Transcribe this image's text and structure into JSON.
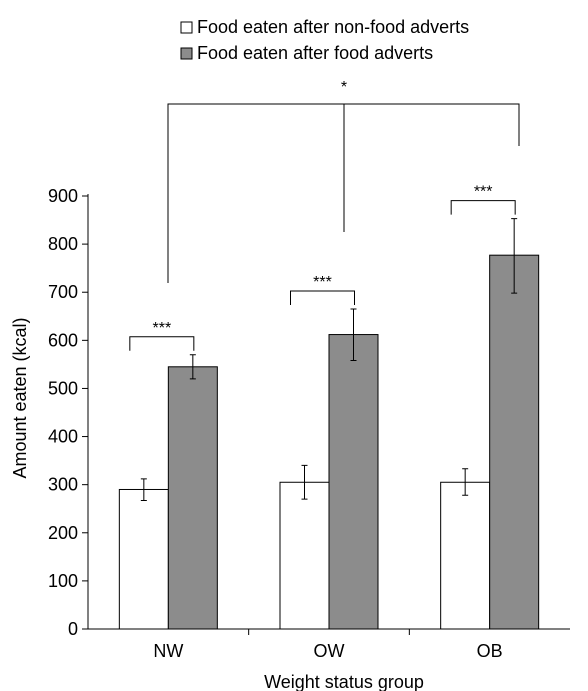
{
  "chart_data": {
    "type": "bar",
    "title": "",
    "xlabel": "Weight status group",
    "ylabel": "Amount eaten (kcal)",
    "ylim": [
      0,
      900
    ],
    "yticks": [
      0,
      100,
      200,
      300,
      400,
      500,
      600,
      700,
      800,
      900
    ],
    "categories": [
      "NW",
      "OW",
      "OB"
    ],
    "series": [
      {
        "name": "Food eaten after non-food adverts",
        "color": "#ffffff",
        "values": [
          290,
          305,
          305
        ],
        "error_low": [
          267,
          270,
          278
        ],
        "error_high": [
          312,
          340,
          333
        ]
      },
      {
        "name": "Food eaten after food adverts",
        "color": "#8c8c8c",
        "values": [
          545,
          612,
          777
        ],
        "error_low": [
          520,
          558,
          698
        ],
        "error_high": [
          570,
          665,
          853
        ]
      }
    ],
    "legend_position": "top",
    "grid": false,
    "significance": {
      "within_group": [
        "***",
        "***",
        "***"
      ],
      "between_groups": "*"
    }
  }
}
